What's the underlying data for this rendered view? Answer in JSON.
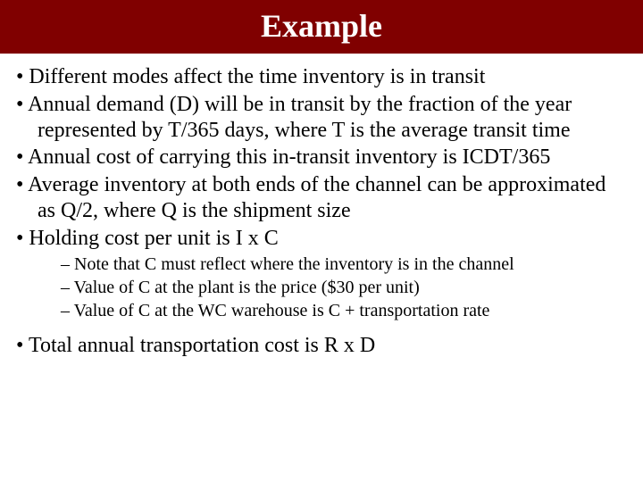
{
  "title_bar": {
    "background_color": "#800000",
    "text_color": "#ffffff",
    "title": "Example",
    "title_fontsize": 36,
    "title_fontweight": "bold"
  },
  "body": {
    "background_color": "#ffffff",
    "text_color": "#000000",
    "main_bullet_fontsize": 24,
    "sub_bullet_fontsize": 20,
    "font_family": "Times New Roman"
  },
  "bullets": {
    "b1": "Different modes affect the time inventory is in transit",
    "b2": "Annual demand (D) will be in transit by the fraction of the year represented by T/365 days, where T is the average transit time",
    "b3": "Annual cost of carrying this in-transit inventory is ICDT/365",
    "b4": "Average inventory at both ends of the channel can be approximated as Q/2, where Q is the shipment size",
    "b5": "Holding cost per unit is I x C",
    "b5_sub1": "Note that C must reflect where the inventory is in the channel",
    "b5_sub2": "Value of C at the plant is the price ($30 per unit)",
    "b5_sub3": "Value of C at the WC warehouse is C + transportation rate",
    "b6": "Total annual transportation cost is R x D"
  }
}
